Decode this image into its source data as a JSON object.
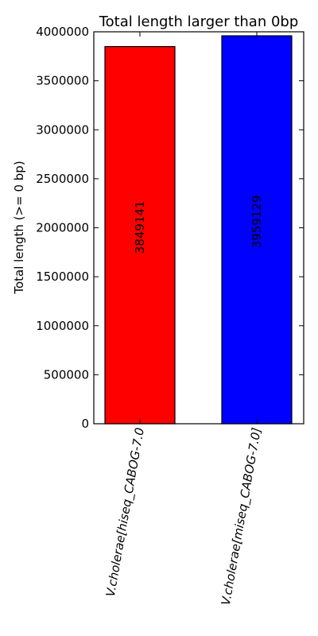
{
  "chart_data": {
    "type": "bar",
    "title": "Total length larger than 0bp",
    "xlabel": "",
    "ylabel": "Total length (>= 0 bp)",
    "ylim": [
      0,
      4000000
    ],
    "yticks": [
      0,
      500000,
      1000000,
      1500000,
      2000000,
      2500000,
      3000000,
      3500000,
      4000000
    ],
    "categories": [
      "V.cholerae[hiseq_CABOG-7.0",
      "V.cholerae[miseq_CABOG-7.0]"
    ],
    "values": [
      3849141,
      3959129
    ],
    "bar_colors": [
      "#ff0000",
      "#0000ff"
    ],
    "data_labels": [
      "3849141",
      "3959129"
    ],
    "grid": false,
    "legend": "none"
  }
}
